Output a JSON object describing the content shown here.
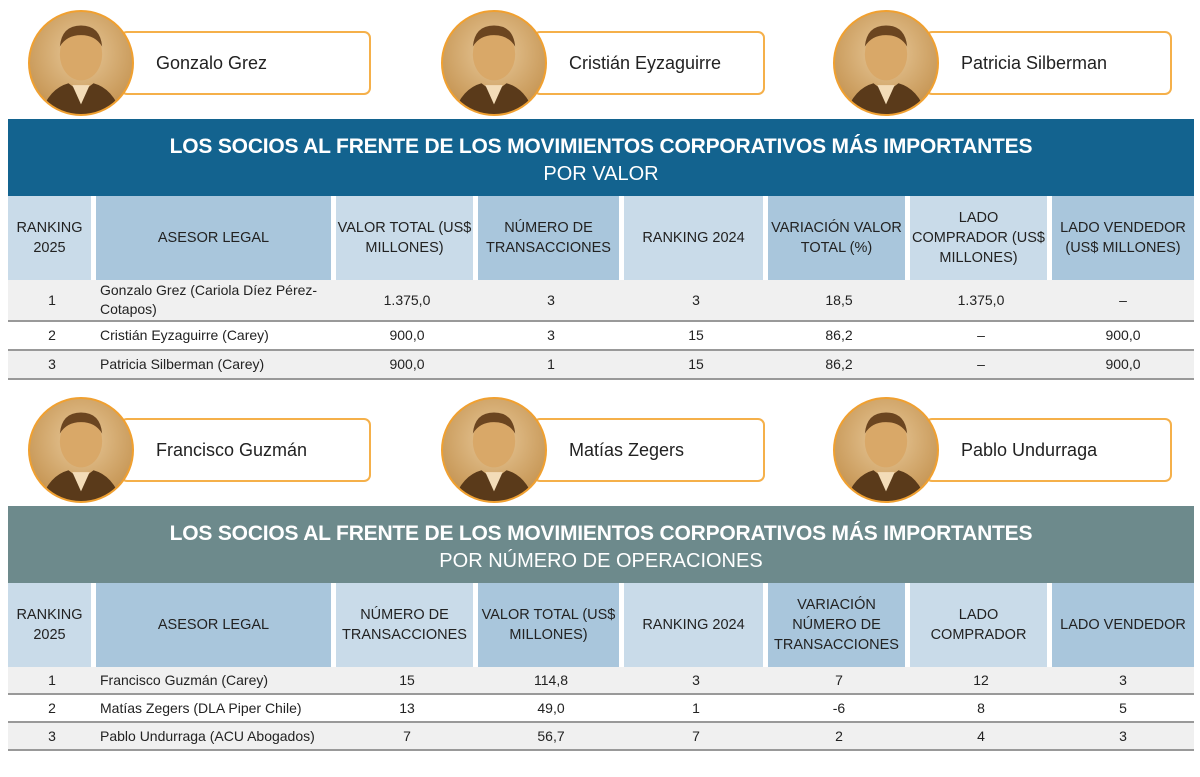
{
  "section1": {
    "people": [
      "Gonzalo Grez",
      "Cristián Eyzaguirre",
      "Patricia Silberman"
    ],
    "title": "LOS SOCIOS AL FRENTE DE LOS MOVIMIENTOS CORPORATIVOS MÁS IMPORTANTES",
    "subtitle": "POR VALOR",
    "headers": [
      "RANKING 2025",
      "ASESOR LEGAL",
      "VALOR TOTAL (US$ MILLONES)",
      "NÚMERO DE TRANSACCIONES",
      "RANKING 2024",
      "VARIACIÓN VALOR TOTAL (%)",
      "LADO COMPRADOR (US$ MILLONES)",
      "LADO VENDEDOR (US$ MILLONES)"
    ],
    "rows": [
      [
        "1",
        "Gonzalo Grez (Cariola Díez Pérez-Cotapos)",
        "1.375,0",
        "3",
        "3",
        "18,5",
        "1.375,0",
        "–"
      ],
      [
        "2",
        "Cristián Eyzaguirre (Carey)",
        "900,0",
        "3",
        "15",
        "86,2",
        "–",
        "900,0"
      ],
      [
        "3",
        "Patricia Silberman (Carey)",
        "900,0",
        "1",
        "15",
        "86,2",
        "–",
        "900,0"
      ]
    ]
  },
  "section2": {
    "people": [
      "Francisco Guzmán",
      "Matías Zegers",
      "Pablo Undurraga"
    ],
    "title": "LOS SOCIOS AL FRENTE DE LOS MOVIMIENTOS CORPORATIVOS MÁS IMPORTANTES",
    "subtitle": "POR NÚMERO DE OPERACIONES",
    "headers": [
      "RANKING 2025",
      "ASESOR LEGAL",
      "NÚMERO DE TRANSACCIONES",
      "VALOR TOTAL (US$ MILLONES)",
      "RANKING 2024",
      "VARIACIÓN NÚMERO DE TRANSACCIONES",
      "LADO COMPRADOR",
      "LADO VENDEDOR"
    ],
    "rows": [
      [
        "1",
        "Francisco Guzmán (Carey)",
        "15",
        "114,8",
        "3",
        "7",
        "12",
        "3"
      ],
      [
        "2",
        "Matías Zegers (DLA Piper Chile)",
        "13",
        "49,0",
        "1",
        "-6",
        "8",
        "5"
      ],
      [
        "3",
        "Pablo Undurraga (ACU Abogados)",
        "7",
        "56,7",
        "7",
        "2",
        "4",
        "3"
      ]
    ]
  },
  "colors": {
    "banner1": "#13638f",
    "banner2": "#6d8a8c",
    "accent": "#f5b04a"
  }
}
